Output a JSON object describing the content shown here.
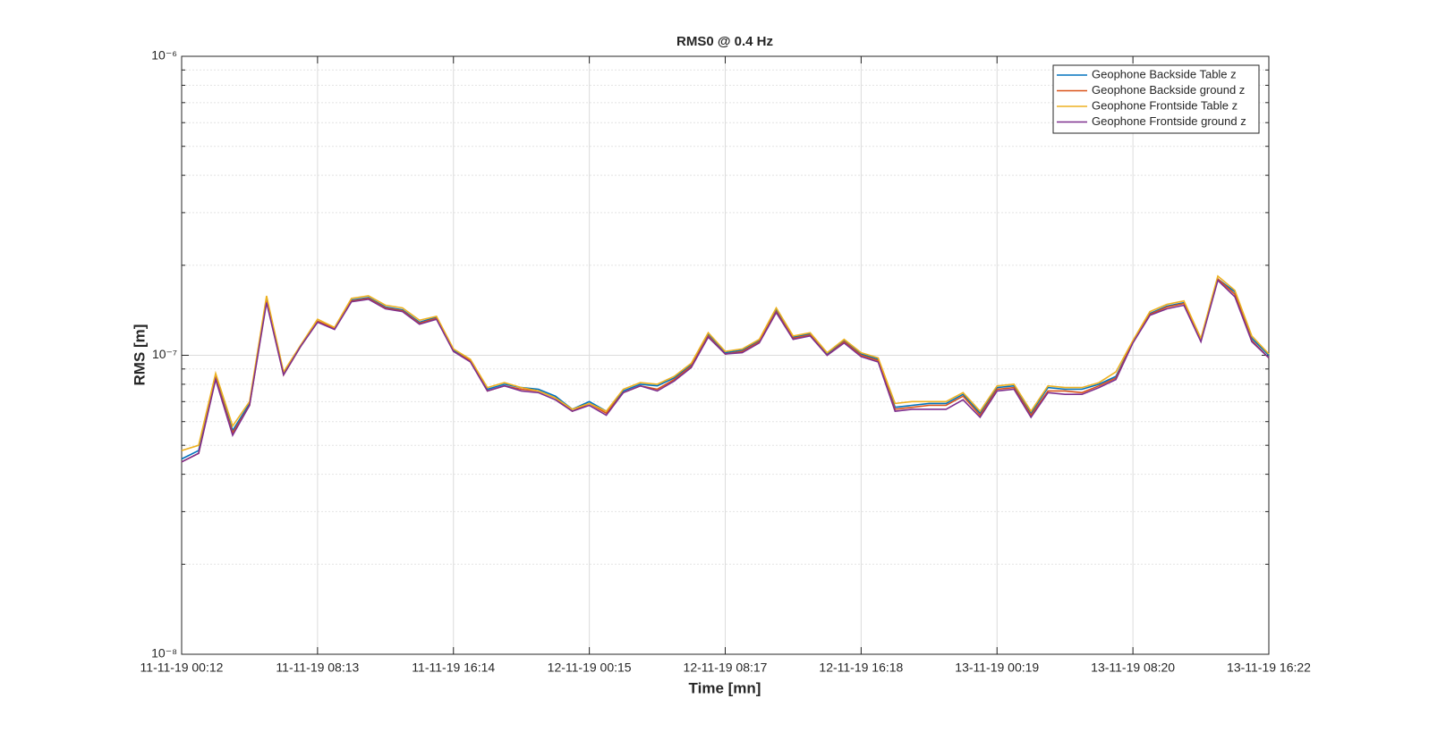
{
  "chart_data": {
    "type": "line",
    "title": "RMS0 @ 0.4 Hz",
    "x_label": "Time [mn]",
    "y_label": "RMS [m]",
    "categories": [
      "11-11-19 00:12",
      null,
      null,
      null,
      null,
      null,
      null,
      null,
      "11-11-19 08:13",
      null,
      null,
      null,
      null,
      null,
      null,
      null,
      "11-11-19 16:14",
      null,
      null,
      null,
      null,
      null,
      null,
      null,
      "12-11-19 00:15",
      null,
      null,
      null,
      null,
      null,
      null,
      null,
      "12-11-19 08:17",
      null,
      null,
      null,
      null,
      null,
      null,
      null,
      "12-11-19 16:18",
      null,
      null,
      null,
      null,
      null,
      null,
      null,
      "13-11-19 00:19",
      null,
      null,
      null,
      null,
      null,
      null,
      null,
      "13-11-19 08:20",
      null,
      null,
      null,
      null,
      null,
      null,
      null,
      "13-11-19 16:22"
    ],
    "series": [
      {
        "name": "Geophone Backside Table z",
        "color": "#0072BD",
        "values": [
          4.5e-08,
          4.8e-08,
          8.5e-08,
          5.6e-08,
          6.9e-08,
          1.54e-07,
          8.7e-08,
          1.07e-07,
          1.3e-07,
          1.23e-07,
          1.53e-07,
          1.56e-07,
          1.45e-07,
          1.42e-07,
          1.29e-07,
          1.34e-07,
          1.04e-07,
          9.6e-08,
          7.7e-08,
          8e-08,
          7.8e-08,
          7.7e-08,
          7.3e-08,
          6.6e-08,
          7e-08,
          6.5e-08,
          7.6e-08,
          8e-08,
          7.9e-08,
          8.4e-08,
          9.3e-08,
          1.18e-07,
          1.02e-07,
          1.04e-07,
          1.12e-07,
          1.42e-07,
          1.15e-07,
          1.18e-07,
          1.01e-07,
          1.12e-07,
          1.01e-07,
          9.7e-08,
          6.7e-08,
          6.8e-08,
          6.9e-08,
          6.9e-08,
          7.4e-08,
          6.4e-08,
          7.8e-08,
          7.9e-08,
          6.4e-08,
          7.8e-08,
          7.7e-08,
          7.7e-08,
          8e-08,
          8.5e-08,
          1.11e-07,
          1.38e-07,
          1.46e-07,
          1.5e-07,
          1.13e-07,
          1.8e-07,
          1.63e-07,
          1.14e-07,
          1e-07
        ]
      },
      {
        "name": "Geophone Backside ground z",
        "color": "#D95319",
        "values": [
          4.4e-08,
          4.7e-08,
          8.4e-08,
          5.5e-08,
          6.8e-08,
          1.52e-07,
          8.6e-08,
          1.07e-07,
          1.3e-07,
          1.23e-07,
          1.52e-07,
          1.55e-07,
          1.44e-07,
          1.41e-07,
          1.28e-07,
          1.33e-07,
          1.03e-07,
          9.6e-08,
          7.6e-08,
          7.9e-08,
          7.7e-08,
          7.6e-08,
          7.2e-08,
          6.5e-08,
          6.9e-08,
          6.4e-08,
          7.5e-08,
          7.9e-08,
          7.7e-08,
          8.3e-08,
          9.2e-08,
          1.16e-07,
          1.01e-07,
          1.03e-07,
          1.11e-07,
          1.4e-07,
          1.14e-07,
          1.17e-07,
          1e-07,
          1.11e-07,
          1e-07,
          9.6e-08,
          6.6e-08,
          6.7e-08,
          6.8e-08,
          6.8e-08,
          7.3e-08,
          6.3e-08,
          7.7e-08,
          7.8e-08,
          6.3e-08,
          7.6e-08,
          7.6e-08,
          7.5e-08,
          7.9e-08,
          8.4e-08,
          1.11e-07,
          1.37e-07,
          1.45e-07,
          1.49e-07,
          1.12e-07,
          1.8e-07,
          1.6e-07,
          1.12e-07,
          9.8e-08
        ]
      },
      {
        "name": "Geophone Frontside Table z",
        "color": "#EDB120",
        "values": [
          4.8e-08,
          5e-08,
          8.7e-08,
          5.8e-08,
          7e-08,
          1.58e-07,
          8.8e-08,
          1.08e-07,
          1.32e-07,
          1.24e-07,
          1.55e-07,
          1.58e-07,
          1.47e-07,
          1.44e-07,
          1.31e-07,
          1.35e-07,
          1.05e-07,
          9.7e-08,
          7.8e-08,
          8.1e-08,
          7.8e-08,
          7.6e-08,
          7.2e-08,
          6.6e-08,
          6.9e-08,
          6.5e-08,
          7.7e-08,
          8.1e-08,
          8e-08,
          8.5e-08,
          9.4e-08,
          1.19e-07,
          1.03e-07,
          1.05e-07,
          1.13e-07,
          1.44e-07,
          1.16e-07,
          1.19e-07,
          1.02e-07,
          1.13e-07,
          1.02e-07,
          9.8e-08,
          6.9e-08,
          7e-08,
          7e-08,
          7e-08,
          7.5e-08,
          6.5e-08,
          7.9e-08,
          8e-08,
          6.5e-08,
          7.9e-08,
          7.8e-08,
          7.8e-08,
          8.1e-08,
          8.8e-08,
          1.12e-07,
          1.4e-07,
          1.48e-07,
          1.52e-07,
          1.14e-07,
          1.84e-07,
          1.65e-07,
          1.16e-07,
          1.01e-07
        ]
      },
      {
        "name": "Geophone Frontside ground z",
        "color": "#7E2F8E",
        "values": [
          4.4e-08,
          4.7e-08,
          8.3e-08,
          5.4e-08,
          6.8e-08,
          1.5e-07,
          8.6e-08,
          1.07e-07,
          1.29e-07,
          1.22e-07,
          1.51e-07,
          1.54e-07,
          1.43e-07,
          1.4e-07,
          1.27e-07,
          1.32e-07,
          1.03e-07,
          9.5e-08,
          7.6e-08,
          7.9e-08,
          7.6e-08,
          7.5e-08,
          7.1e-08,
          6.5e-08,
          6.8e-08,
          6.3e-08,
          7.5e-08,
          7.9e-08,
          7.6e-08,
          8.2e-08,
          9.1e-08,
          1.15e-07,
          1.01e-07,
          1.02e-07,
          1.1e-07,
          1.39e-07,
          1.13e-07,
          1.16e-07,
          1e-07,
          1.1e-07,
          9.9e-08,
          9.5e-08,
          6.5e-08,
          6.6e-08,
          6.6e-08,
          6.6e-08,
          7.1e-08,
          6.2e-08,
          7.6e-08,
          7.7e-08,
          6.2e-08,
          7.5e-08,
          7.4e-08,
          7.4e-08,
          7.8e-08,
          8.3e-08,
          1.1e-07,
          1.36e-07,
          1.43e-07,
          1.47e-07,
          1.11e-07,
          1.78e-07,
          1.57e-07,
          1.11e-07,
          9.8e-08
        ]
      }
    ],
    "ylim": [
      1e-08,
      1e-06
    ],
    "yticks": [
      {
        "value": 1e-08,
        "label": "10⁻⁸"
      },
      {
        "value": 1e-07,
        "label": "10⁻⁷"
      },
      {
        "value": 1e-06,
        "label": "10⁻⁶"
      }
    ],
    "y_scale": "log",
    "grid": true,
    "legend": "top-right"
  }
}
